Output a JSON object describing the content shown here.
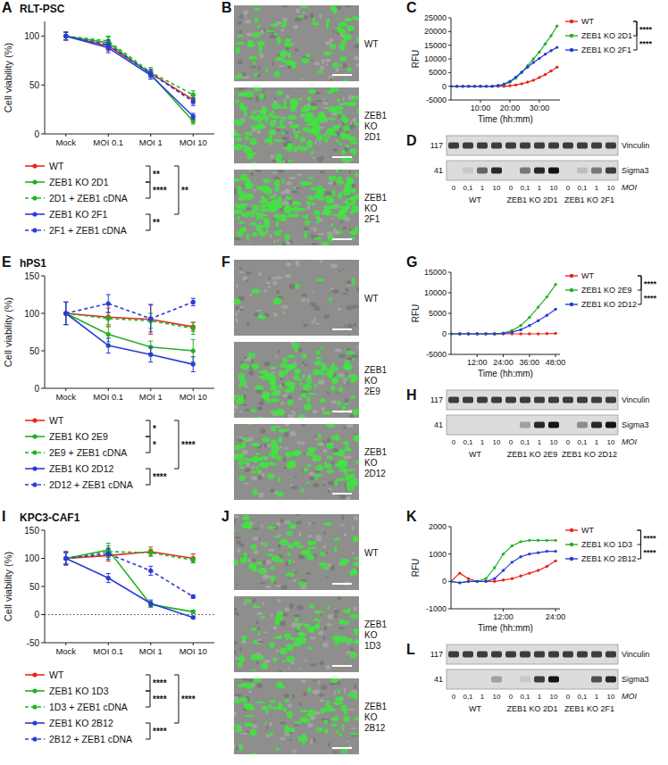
{
  "chart_data": [
    {
      "panel_label": "A",
      "title": "RLT-PSC",
      "type": "line",
      "y_label": "Cell viability (%)",
      "categories": [
        "Mock",
        "MOI 0.1",
        "MOI 1",
        "MOI 10"
      ],
      "ylim": [
        0,
        115
      ],
      "yticks": [
        0,
        50,
        100
      ],
      "legend": "bottom",
      "marker": "circle",
      "series": [
        {
          "name": "WT",
          "color": "#e8261f",
          "line_style": "solid",
          "values": [
            100,
            90,
            62,
            35
          ],
          "errors": [
            4,
            5,
            4,
            4
          ]
        },
        {
          "name": "ZEB1 KO 2D1",
          "color": "#21b321",
          "line_style": "solid",
          "values": [
            100,
            93,
            61,
            13
          ],
          "errors": [
            4,
            6,
            5,
            3
          ]
        },
        {
          "name": "2D1 + ZEB1 cDNA",
          "color": "#21b321",
          "line_style": "dashed",
          "values": [
            100,
            95,
            63,
            40
          ],
          "errors": [
            4,
            5,
            5,
            4
          ]
        },
        {
          "name": "ZEB1 KO 2F1",
          "color": "#2a3bd8",
          "line_style": "solid",
          "values": [
            100,
            88,
            60,
            18
          ],
          "errors": [
            4,
            5,
            4,
            3
          ]
        },
        {
          "name": "2F1 + ZEB1 cDNA",
          "color": "#2a3bd8",
          "line_style": "dashed",
          "values": [
            100,
            91,
            62,
            33
          ],
          "errors": [
            4,
            5,
            4,
            4
          ]
        }
      ],
      "annotations": [
        {
          "type": "bracket",
          "text": "**",
          "between": [
            "WT",
            "ZEB1 KO 2D1"
          ]
        },
        {
          "type": "bracket",
          "text": "****",
          "between": [
            "ZEB1 KO 2D1",
            "2D1 + ZEB1 cDNA"
          ]
        },
        {
          "type": "bracket",
          "text": "**",
          "between": [
            "WT",
            "ZEB1 KO 2F1"
          ]
        },
        {
          "type": "bracket",
          "text": "**",
          "between": [
            "ZEB1 KO 2F1",
            "2F1 + ZEB1 cDNA"
          ]
        }
      ]
    },
    {
      "panel_label": "C",
      "type": "line",
      "y_label": "RFU",
      "x_label": "Time (hh:mm)",
      "x": [
        0,
        2,
        4,
        6,
        8,
        10,
        12,
        14,
        16,
        18,
        20,
        22,
        24,
        26,
        28,
        30,
        32,
        34,
        36
      ],
      "xlim": [
        0,
        37
      ],
      "xticks": [
        {
          "value": 10,
          "label": "10:00"
        },
        {
          "value": 20,
          "label": "20:00"
        },
        {
          "value": 30,
          "label": "30:00"
        }
      ],
      "ylim": [
        -5000,
        25000
      ],
      "yticks": [
        -5000,
        0,
        5000,
        10000,
        15000,
        20000,
        25000
      ],
      "legend": "right",
      "marker": "circle",
      "series": [
        {
          "name": "WT",
          "color": "#e8261f",
          "values": [
            0,
            0,
            0,
            0,
            0,
            0,
            0,
            0,
            0,
            0,
            200,
            500,
            900,
            1500,
            2200,
            3200,
            4300,
            5600,
            7000
          ]
        },
        {
          "name": "ZEB1 KO 2D1",
          "color": "#21b321",
          "values": [
            0,
            0,
            0,
            0,
            0,
            0,
            0,
            0,
            200,
            600,
            1500,
            3000,
            5000,
            7500,
            10000,
            12500,
            15500,
            18500,
            22000
          ]
        },
        {
          "name": "ZEB1 KO 2F1",
          "color": "#2a3bd8",
          "values": [
            0,
            0,
            0,
            0,
            0,
            0,
            0,
            0,
            300,
            800,
            1800,
            3300,
            5200,
            7000,
            8700,
            10200,
            11700,
            13000,
            14200
          ]
        }
      ],
      "annotations": [
        {
          "type": "bracket",
          "text": "****",
          "between": [
            "WT",
            "ZEB1 KO 2D1"
          ]
        },
        {
          "type": "bracket",
          "text": "****",
          "between": [
            "WT",
            "ZEB1 KO 2F1"
          ]
        }
      ]
    },
    {
      "panel_label": "E",
      "title": "hPS1",
      "type": "line",
      "y_label": "Cell viability (%)",
      "categories": [
        "Mock",
        "MOI 0.1",
        "MOI 1",
        "MOI 10"
      ],
      "ylim": [
        0,
        150
      ],
      "yticks": [
        0,
        50,
        100,
        150
      ],
      "legend": "bottom",
      "marker": "circle",
      "series": [
        {
          "name": "WT",
          "color": "#e8261f",
          "line_style": "solid",
          "values": [
            100,
            95,
            92,
            82
          ],
          "errors": [
            15,
            12,
            20,
            6
          ]
        },
        {
          "name": "ZEB1 KO 2E9",
          "color": "#21b321",
          "line_style": "solid",
          "values": [
            100,
            72,
            55,
            50
          ],
          "errors": [
            15,
            10,
            8,
            15
          ]
        },
        {
          "name": "2E9 + ZEB1 cDNA",
          "color": "#21b321",
          "line_style": "dashed",
          "values": [
            100,
            93,
            90,
            80
          ],
          "errors": [
            15,
            8,
            10,
            8
          ]
        },
        {
          "name": "ZEB1 KO 2D12",
          "color": "#2a3bd8",
          "line_style": "solid",
          "values": [
            100,
            57,
            45,
            32
          ],
          "errors": [
            15,
            10,
            10,
            10
          ]
        },
        {
          "name": "2D12 + ZEB1 cDNA",
          "color": "#2a3bd8",
          "line_style": "dashed",
          "values": [
            100,
            113,
            93,
            115
          ],
          "errors": [
            15,
            12,
            18,
            5
          ]
        }
      ],
      "annotations": [
        {
          "type": "bracket",
          "text": "*",
          "between": [
            "WT",
            "ZEB1 KO 2E9"
          ]
        },
        {
          "type": "bracket",
          "text": "*",
          "between": [
            "ZEB1 KO 2E9",
            "2E9 + ZEB1 cDNA"
          ]
        },
        {
          "type": "bracket",
          "text": "****",
          "between": [
            "WT",
            "ZEB1 KO 2D12"
          ]
        },
        {
          "type": "bracket",
          "text": "****",
          "between": [
            "ZEB1 KO 2D12",
            "2D12 + ZEB1 cDNA"
          ]
        }
      ]
    },
    {
      "panel_label": "G",
      "type": "line",
      "y_label": "RFU",
      "x_label": "Time (hh:mm)",
      "x": [
        0,
        4,
        8,
        12,
        16,
        20,
        24,
        28,
        32,
        36,
        40,
        44,
        48
      ],
      "xlim": [
        0,
        50
      ],
      "xticks": [
        {
          "value": 12,
          "label": "12:00"
        },
        {
          "value": 24,
          "label": "24:00"
        },
        {
          "value": 36,
          "label": "36:00"
        },
        {
          "value": 48,
          "label": "48:00"
        }
      ],
      "ylim": [
        -5000,
        15000
      ],
      "yticks": [
        -5000,
        0,
        5000,
        10000,
        15000
      ],
      "legend": "right",
      "marker": "circle",
      "series": [
        {
          "name": "WT",
          "color": "#e8261f",
          "values": [
            0,
            0,
            0,
            0,
            0,
            0,
            0,
            0,
            0,
            0,
            0,
            50,
            100
          ]
        },
        {
          "name": "ZEB1 KO 2E9",
          "color": "#21b321",
          "values": [
            0,
            0,
            0,
            0,
            0,
            0,
            200,
            800,
            2000,
            4000,
            6500,
            9000,
            12000
          ]
        },
        {
          "name": "ZEB1 KO 2D12",
          "color": "#2a3bd8",
          "values": [
            0,
            0,
            0,
            0,
            0,
            0,
            100,
            400,
            1000,
            2000,
            3200,
            4500,
            6000
          ]
        }
      ],
      "annotations": [
        {
          "type": "bracket",
          "text": "****",
          "between": [
            "WT",
            "ZEB1 KO 2E9"
          ]
        },
        {
          "type": "bracket",
          "text": "****",
          "between": [
            "WT",
            "ZEB1 KO 2D12"
          ]
        }
      ]
    },
    {
      "panel_label": "I",
      "title": "KPC3-CAF1",
      "type": "line",
      "y_label": "Cell viability (%)",
      "categories": [
        "Mock",
        "MOI 0.1",
        "MOI 1",
        "MOI 10"
      ],
      "ylim": [
        -50,
        150
      ],
      "yticks": [
        -50,
        0,
        50,
        100,
        150
      ],
      "legend": "bottom",
      "marker": "circle",
      "series": [
        {
          "name": "WT",
          "color": "#e8261f",
          "line_style": "solid",
          "values": [
            100,
            105,
            112,
            100
          ],
          "errors": [
            12,
            10,
            8,
            8
          ]
        },
        {
          "name": "ZEB1 KO 1D3",
          "color": "#21b321",
          "line_style": "solid",
          "values": [
            100,
            115,
            18,
            5
          ],
          "errors": [
            10,
            12,
            5,
            3
          ]
        },
        {
          "name": "1D3 + ZEB1 cDNA",
          "color": "#21b321",
          "line_style": "dashed",
          "values": [
            100,
            112,
            110,
            97
          ],
          "errors": [
            10,
            10,
            6,
            5
          ]
        },
        {
          "name": "ZEB1 KO 2B12",
          "color": "#2a3bd8",
          "line_style": "solid",
          "values": [
            100,
            65,
            20,
            -5
          ],
          "errors": [
            12,
            8,
            6,
            2
          ]
        },
        {
          "name": "2B12 + ZEB1 cDNA",
          "color": "#2a3bd8",
          "line_style": "dashed",
          "values": [
            100,
            108,
            78,
            32
          ],
          "errors": [
            10,
            10,
            8,
            3
          ]
        }
      ],
      "annotations": [
        {
          "type": "bracket",
          "text": "****",
          "between": [
            "WT",
            "ZEB1 KO 1D3"
          ]
        },
        {
          "type": "bracket",
          "text": "****",
          "between": [
            "ZEB1 KO 1D3",
            "1D3 + ZEB1 cDNA"
          ]
        },
        {
          "type": "bracket",
          "text": "****",
          "between": [
            "WT",
            "ZEB1 KO 2B12"
          ]
        },
        {
          "type": "bracket",
          "text": "****",
          "between": [
            "ZEB1 KO 2B12",
            "2B12 + ZEB1 cDNA"
          ]
        },
        {
          "type": "hline",
          "y": 0,
          "line_style": "dotted"
        }
      ]
    },
    {
      "panel_label": "K",
      "type": "line",
      "y_label": "RFU",
      "x_label": "Time (hh:mm)",
      "x": [
        0,
        2,
        4,
        6,
        8,
        10,
        12,
        14,
        16,
        18,
        20,
        22,
        24
      ],
      "xlim": [
        0,
        25
      ],
      "xticks": [
        {
          "value": 12,
          "label": "12:00"
        },
        {
          "value": 24,
          "label": "24:00"
        }
      ],
      "ylim": [
        -1000,
        2000
      ],
      "yticks": [
        -1000,
        0,
        1000,
        2000
      ],
      "legend": "right",
      "marker": "circle",
      "series": [
        {
          "name": "WT",
          "color": "#e8261f",
          "values": [
            0,
            300,
            100,
            0,
            0,
            0,
            50,
            100,
            200,
            300,
            400,
            550,
            750
          ]
        },
        {
          "name": "ZEB1 KO 1D3",
          "color": "#21b321",
          "values": [
            0,
            -50,
            0,
            0,
            100,
            500,
            1000,
            1300,
            1450,
            1500,
            1500,
            1500,
            1500
          ]
        },
        {
          "name": "ZEB1 KO 2B12",
          "color": "#2a3bd8",
          "values": [
            0,
            -50,
            0,
            0,
            0,
            100,
            400,
            700,
            900,
            1000,
            1050,
            1100,
            1100
          ]
        }
      ],
      "annotations": [
        {
          "type": "bracket",
          "text": "****",
          "between": [
            "WT",
            "ZEB1 KO 1D3"
          ]
        },
        {
          "type": "bracket",
          "text": "****",
          "between": [
            "WT",
            "ZEB1 KO 2B12"
          ]
        }
      ]
    }
  ],
  "images": [
    {
      "panel_label": "B",
      "items": [
        {
          "label": "WT",
          "signal": 0.35
        },
        {
          "label": "ZEB1 KO 2D1",
          "signal": 0.8
        },
        {
          "label": "ZEB1 KO 2F1",
          "signal": 0.9
        }
      ]
    },
    {
      "panel_label": "F",
      "items": [
        {
          "label": "WT",
          "signal": 0.05
        },
        {
          "label": "ZEB1 KO 2E9",
          "signal": 0.6
        },
        {
          "label": "ZEB1 KO 2D12",
          "signal": 0.55
        }
      ]
    },
    {
      "panel_label": "J",
      "items": [
        {
          "label": "WT",
          "signal": 0.3
        },
        {
          "label": "ZEB1 KO 1D3",
          "signal": 0.35
        },
        {
          "label": "ZEB1 KO 2B12",
          "signal": 0.4
        }
      ]
    }
  ],
  "blots": [
    {
      "panel_label": "D",
      "groups": [
        "WT",
        "ZEB1 KO 2D1",
        "ZEB1 KO 2F1"
      ],
      "lane_labels": [
        "0",
        "0,1",
        "1",
        "10",
        "0",
        "0,1",
        "1",
        "10",
        "0",
        "0,1",
        "1",
        "10"
      ],
      "lane_axis_label": "MOI",
      "rows": [
        {
          "kda": 117,
          "name": "Vinculin",
          "intensity": [
            0.8,
            0.8,
            0.8,
            0.8,
            0.8,
            0.8,
            0.8,
            0.8,
            0.8,
            0.8,
            0.8,
            0.8
          ]
        },
        {
          "kda": 41,
          "name": "Sigma3",
          "intensity": [
            0,
            0.1,
            0.6,
            0.9,
            0,
            0.5,
            0.9,
            1,
            0,
            0.15,
            0.5,
            0.8
          ]
        }
      ]
    },
    {
      "panel_label": "H",
      "groups": [
        "WT",
        "ZEB1 KO 2E9",
        "ZEB1 KO 2D12"
      ],
      "lane_labels": [
        "0",
        "0,1",
        "1",
        "10",
        "0",
        "0,1",
        "1",
        "10",
        "0",
        "0,1",
        "1",
        "10"
      ],
      "lane_axis_label": "MOI",
      "rows": [
        {
          "kda": 117,
          "name": "Vinculin",
          "intensity": [
            0.8,
            0.8,
            0.8,
            0.8,
            0.8,
            0.8,
            0.8,
            0.8,
            0.8,
            0.8,
            0.8,
            0.8
          ]
        },
        {
          "kda": 41,
          "name": "Sigma3",
          "intensity": [
            0,
            0,
            0,
            0,
            0,
            0.3,
            0.9,
            1,
            0,
            0.4,
            0.9,
            1
          ]
        }
      ]
    },
    {
      "panel_label": "L",
      "groups": [
        "WT",
        "ZEB1 KO 2D1",
        "ZEB1 KO 2F1"
      ],
      "lane_labels": [
        "0",
        "0,1",
        "1",
        "10",
        "0",
        "0,1",
        "1",
        "10",
        "0",
        "0,1",
        "1",
        "10"
      ],
      "lane_axis_label": "MOI",
      "rows": [
        {
          "kda": 117,
          "name": "Vinculin",
          "intensity": [
            0.8,
            0.8,
            0.8,
            0.8,
            0.8,
            0.8,
            0.8,
            0.8,
            0.8,
            0.8,
            0.8,
            0.8
          ]
        },
        {
          "kda": 41,
          "name": "Sigma3",
          "intensity": [
            0,
            0,
            0,
            0.3,
            0,
            0.1,
            0.8,
            1,
            0,
            0,
            0.7,
            0.9
          ]
        }
      ]
    }
  ]
}
